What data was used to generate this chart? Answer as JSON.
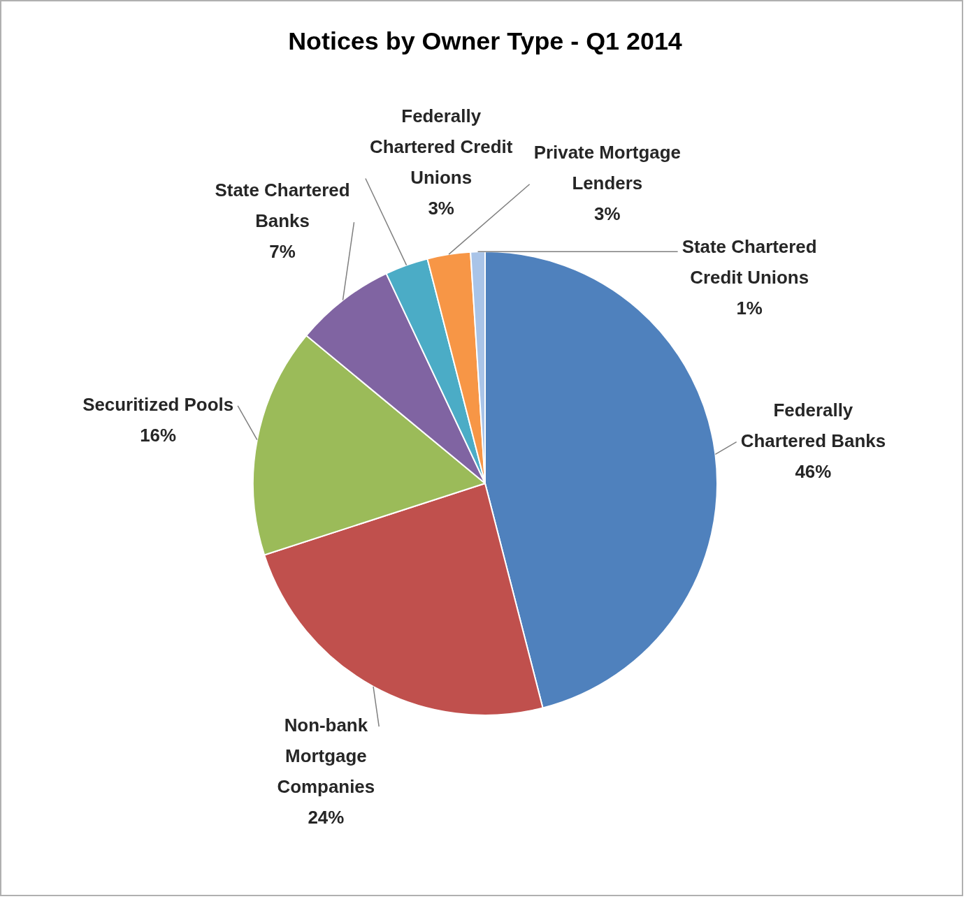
{
  "chart_data": {
    "type": "pie",
    "title": "Notices by Owner Type - Q1 2014",
    "categories": [
      "Federally Chartered Banks",
      "Non-bank Mortgage Companies",
      "Securitized Pools",
      "State Chartered Banks",
      "Federally Chartered Credit Unions",
      "Private Mortgage Lenders",
      "State Chartered Credit Unions"
    ],
    "values": [
      46,
      24,
      16,
      7,
      3,
      3,
      1
    ],
    "value_labels": [
      "46%",
      "24%",
      "16%",
      "7%",
      "3%",
      "3%",
      "1%"
    ],
    "colors": [
      "#4f81bd",
      "#c0504d",
      "#9bbb59",
      "#8064a2",
      "#4bacc6",
      "#f79646",
      "#a9c4e8"
    ],
    "legend": false
  }
}
